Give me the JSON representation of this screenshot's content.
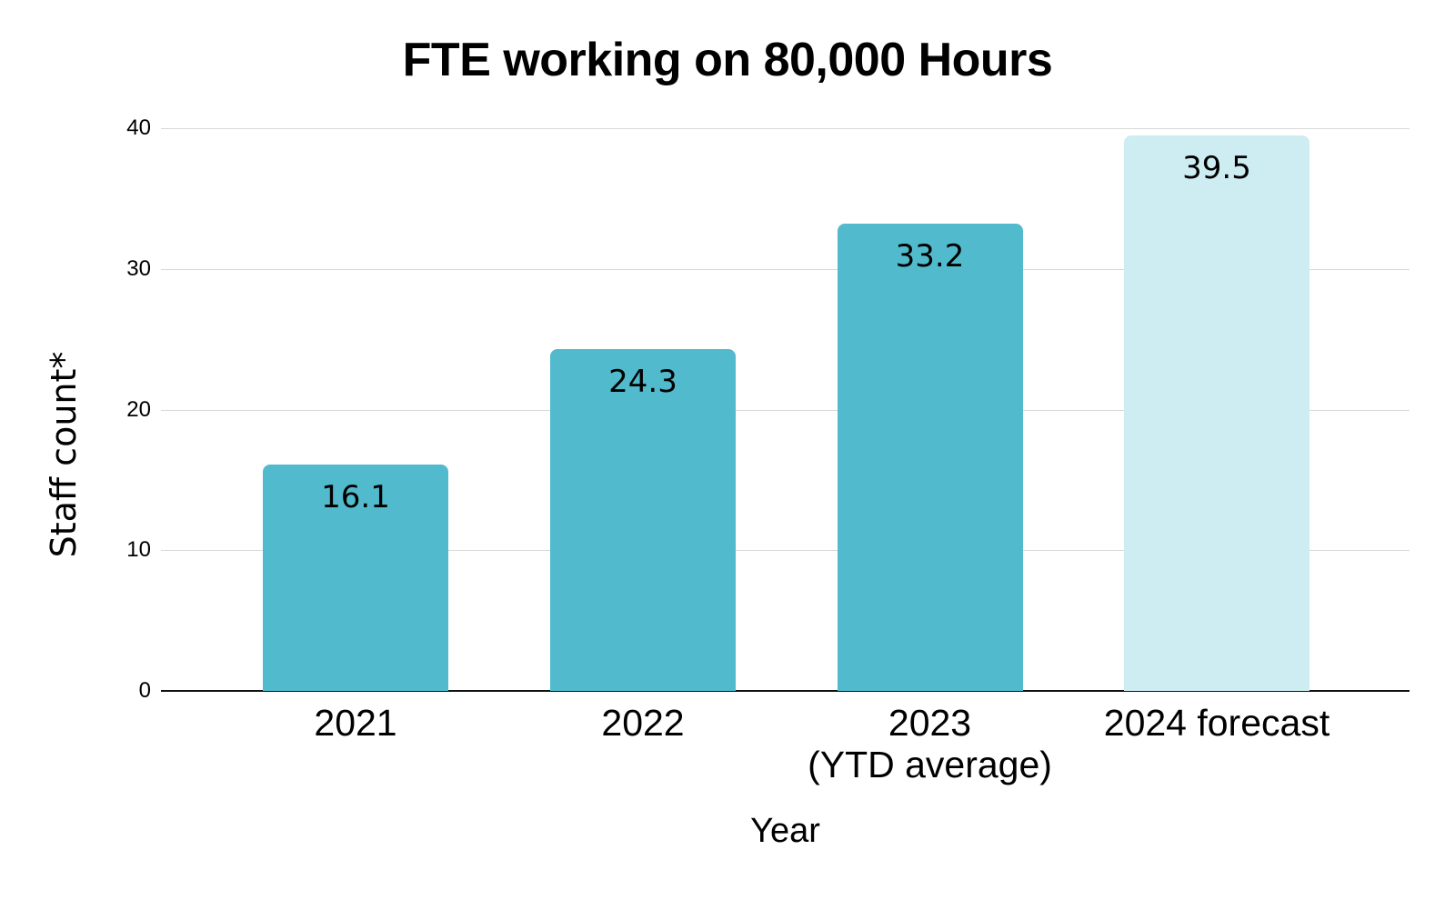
{
  "chart_data": {
    "type": "bar",
    "title": "FTE working on 80,000 Hours",
    "xlabel": "Year",
    "ylabel": "Staff count*",
    "categories": [
      "2021",
      "2022",
      "2023\n(YTD average)",
      "2024 forecast"
    ],
    "values": [
      16.1,
      24.3,
      33.2,
      39.5
    ],
    "value_labels": [
      "16.1",
      "24.3",
      "33.2",
      "39.5"
    ],
    "bar_colors": [
      "#52BACD",
      "#52BACD",
      "#52BACD",
      "#CEEDF2"
    ],
    "ylim": [
      0,
      40
    ],
    "yticks": [
      0,
      10,
      20,
      30,
      40
    ],
    "grid": "horizontal",
    "legend": "none",
    "colors": {
      "bar": "#52BACD",
      "forecast_bar": "#CEEDF2",
      "gridline": "#D9D9D9",
      "axis_line": "#111111",
      "text": "#000000",
      "background": "#FFFFFF"
    }
  }
}
